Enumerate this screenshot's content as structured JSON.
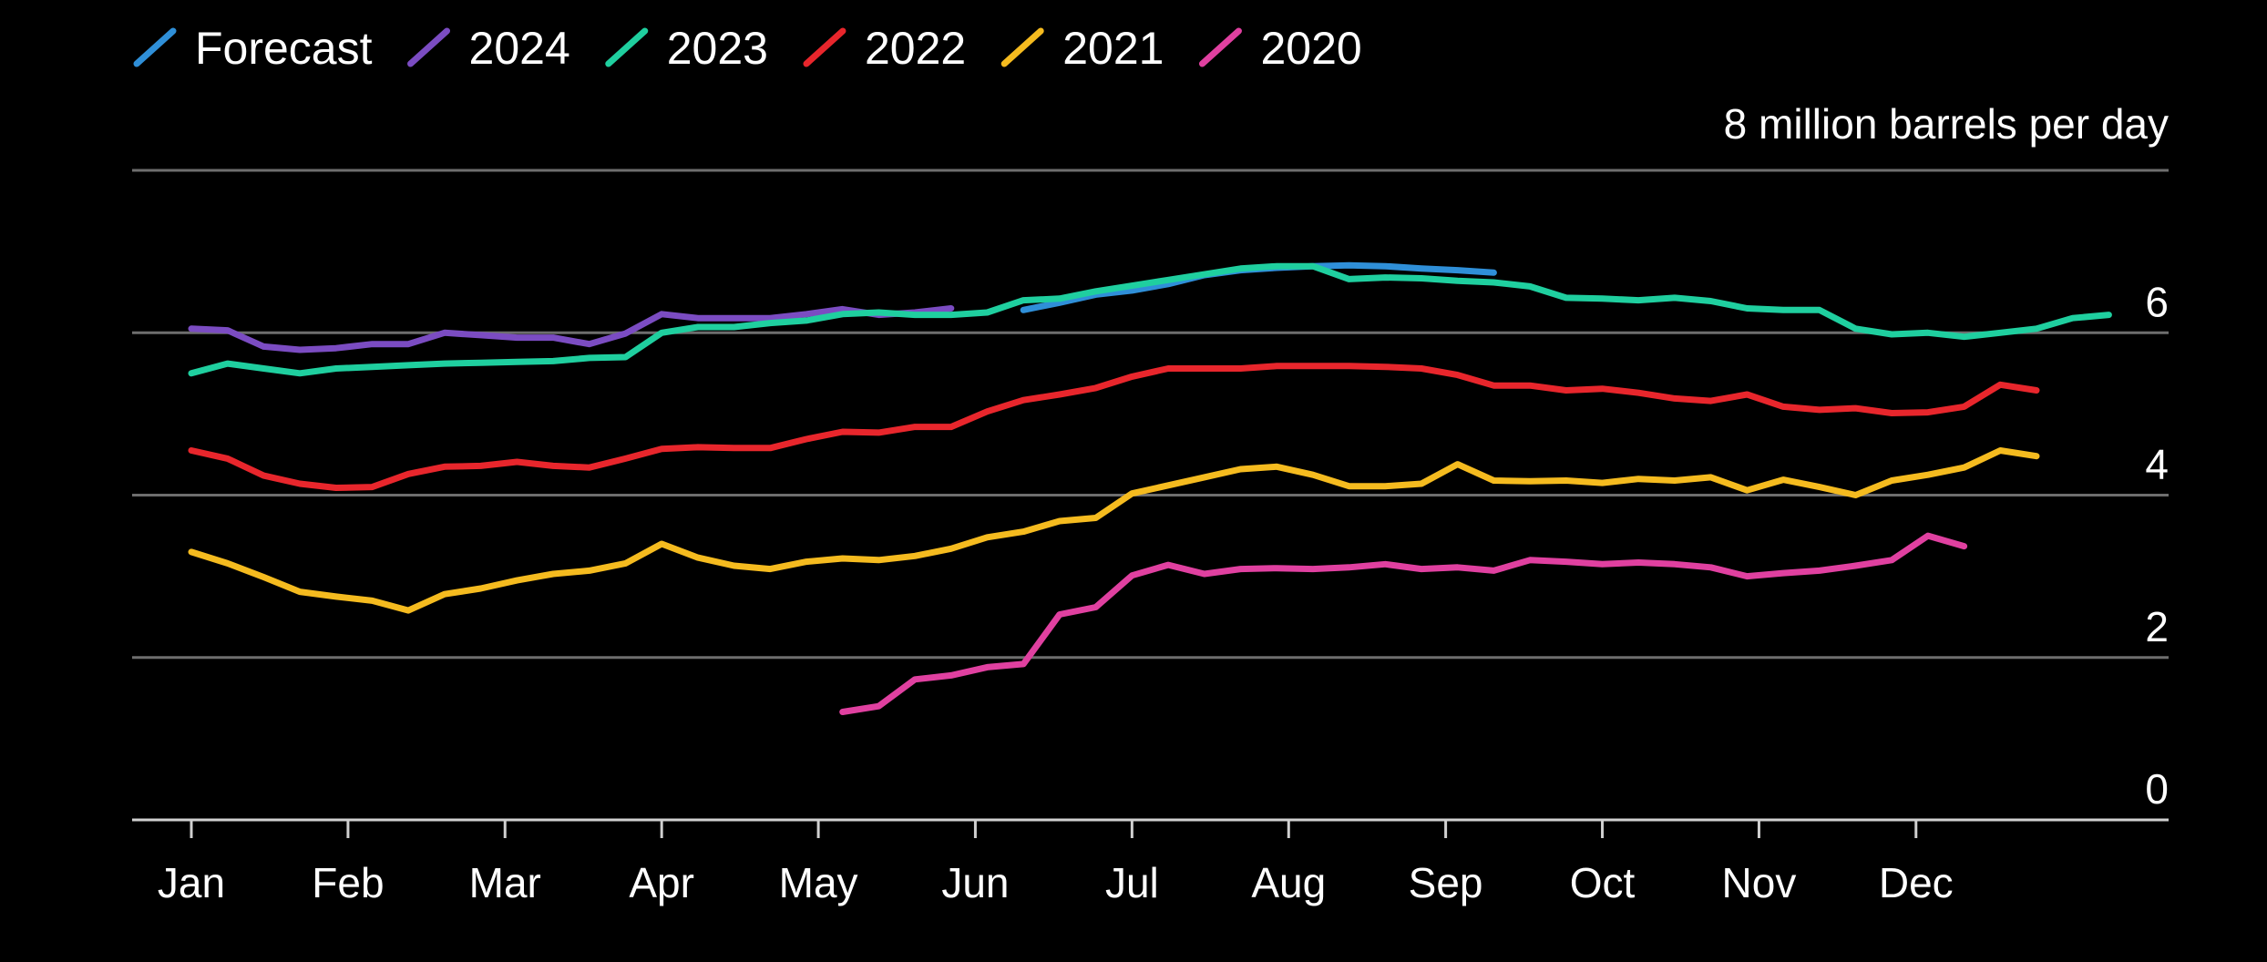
{
  "chart_data": {
    "type": "line",
    "title": "",
    "xlabel": "",
    "ylabel": "",
    "unit_label": "8 million barrels per day",
    "x_tick_labels": [
      "Jan",
      "Feb",
      "Mar",
      "Apr",
      "May",
      "Jun",
      "Jul",
      "Aug",
      "Sep",
      "Oct",
      "Nov",
      "Dec"
    ],
    "y_ticks": [
      0,
      2,
      4,
      6
    ],
    "y_tick_labels": [
      "0",
      "2",
      "4",
      "6"
    ],
    "ylim": [
      0,
      8
    ],
    "xlim": [
      1,
      52
    ],
    "grid": true,
    "legend_position": "top-left",
    "series": [
      {
        "name": "Forecast",
        "color": "#2f8fd8",
        "start_week": 24,
        "values": [
          6.28,
          6.37,
          6.47,
          6.52,
          6.6,
          6.71,
          6.77,
          6.8,
          6.82,
          6.83,
          6.82,
          6.79,
          6.77,
          6.74
        ]
      },
      {
        "name": "2024",
        "color": "#7b4cc2",
        "start_week": 1,
        "values": [
          6.05,
          6.03,
          5.83,
          5.79,
          5.81,
          5.86,
          5.86,
          6.0,
          5.97,
          5.94,
          5.94,
          5.86,
          5.99,
          6.23,
          6.18,
          6.18,
          6.18,
          6.23,
          6.29,
          6.22,
          6.25,
          6.3
        ]
      },
      {
        "name": "2023",
        "color": "#1fcf9f",
        "start_week": 1,
        "values": [
          5.5,
          5.62,
          5.56,
          5.5,
          5.56,
          5.58,
          5.6,
          5.62,
          5.63,
          5.64,
          5.65,
          5.69,
          5.7,
          6.0,
          6.07,
          6.07,
          6.12,
          6.15,
          6.23,
          6.25,
          6.22,
          6.22,
          6.25,
          6.4,
          6.42,
          6.51,
          6.58,
          6.65,
          6.72,
          6.79,
          6.82,
          6.82,
          6.66,
          6.68,
          6.67,
          6.64,
          6.62,
          6.57,
          6.43,
          6.42,
          6.4,
          6.43,
          6.39,
          6.3,
          6.28,
          6.28,
          6.05,
          5.98,
          6.0,
          5.95,
          6.0,
          6.05,
          6.18,
          6.22
        ]
      },
      {
        "name": "2022",
        "color": "#e8262c",
        "start_week": 1,
        "values": [
          4.55,
          4.45,
          4.24,
          4.14,
          4.09,
          4.1,
          4.26,
          4.35,
          4.36,
          4.41,
          4.36,
          4.34,
          4.45,
          4.57,
          4.59,
          4.58,
          4.58,
          4.69,
          4.78,
          4.77,
          4.84,
          4.84,
          5.03,
          5.17,
          5.24,
          5.32,
          5.46,
          5.56,
          5.56,
          5.56,
          5.59,
          5.59,
          5.59,
          5.58,
          5.56,
          5.48,
          5.35,
          5.35,
          5.29,
          5.31,
          5.26,
          5.19,
          5.16,
          5.24,
          5.09,
          5.05,
          5.07,
          5.01,
          5.02,
          5.09,
          5.36,
          5.29
        ]
      },
      {
        "name": "2021",
        "color": "#f5bb1f",
        "start_week": 1,
        "values": [
          3.3,
          3.16,
          2.99,
          2.81,
          2.75,
          2.7,
          2.58,
          2.78,
          2.85,
          2.95,
          3.03,
          3.07,
          3.16,
          3.4,
          3.23,
          3.13,
          3.09,
          3.18,
          3.22,
          3.2,
          3.25,
          3.34,
          3.48,
          3.55,
          3.68,
          3.72,
          4.02,
          4.12,
          4.22,
          4.32,
          4.35,
          4.25,
          4.11,
          4.11,
          4.14,
          4.38,
          4.18,
          4.17,
          4.18,
          4.15,
          4.2,
          4.18,
          4.22,
          4.06,
          4.19,
          4.1,
          4.0,
          4.18,
          4.25,
          4.34,
          4.55,
          4.48
        ]
      },
      {
        "name": "2020",
        "color": "#e040a0",
        "start_week": 19,
        "values": [
          1.33,
          1.4,
          1.73,
          1.78,
          1.88,
          1.92,
          2.53,
          2.62,
          3.01,
          3.14,
          3.03,
          3.09,
          3.1,
          3.09,
          3.11,
          3.15,
          3.09,
          3.11,
          3.07,
          3.2,
          3.18,
          3.15,
          3.17,
          3.15,
          3.11,
          3.0,
          3.04,
          3.07,
          3.13,
          3.2,
          3.5,
          3.37
        ]
      }
    ]
  }
}
